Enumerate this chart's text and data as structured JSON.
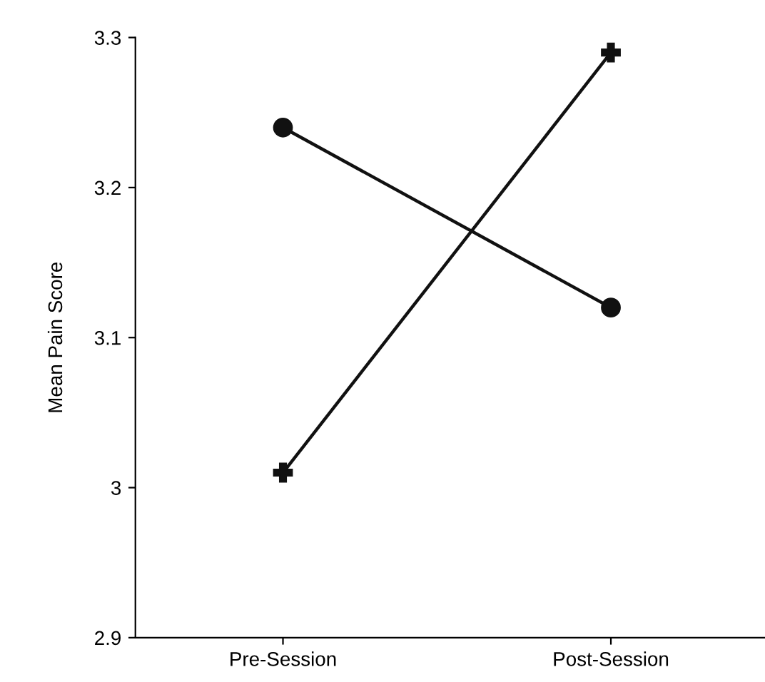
{
  "chart_data": {
    "type": "line",
    "ylabel": "Mean Pain Score",
    "categories": [
      "Pre-Session",
      "Post-Session"
    ],
    "series": [
      {
        "color": "#111111",
        "values": [
          3.24,
          3.12
        ],
        "marker": "circle"
      },
      {
        "color": "#111111",
        "values": [
          3.01,
          3.29
        ],
        "marker": "cross"
      }
    ],
    "ylim": [
      2.9,
      3.3
    ],
    "yticks": [
      2.9,
      3,
      3.1,
      3.2,
      3.3
    ],
    "grid": false,
    "legend": false
  }
}
